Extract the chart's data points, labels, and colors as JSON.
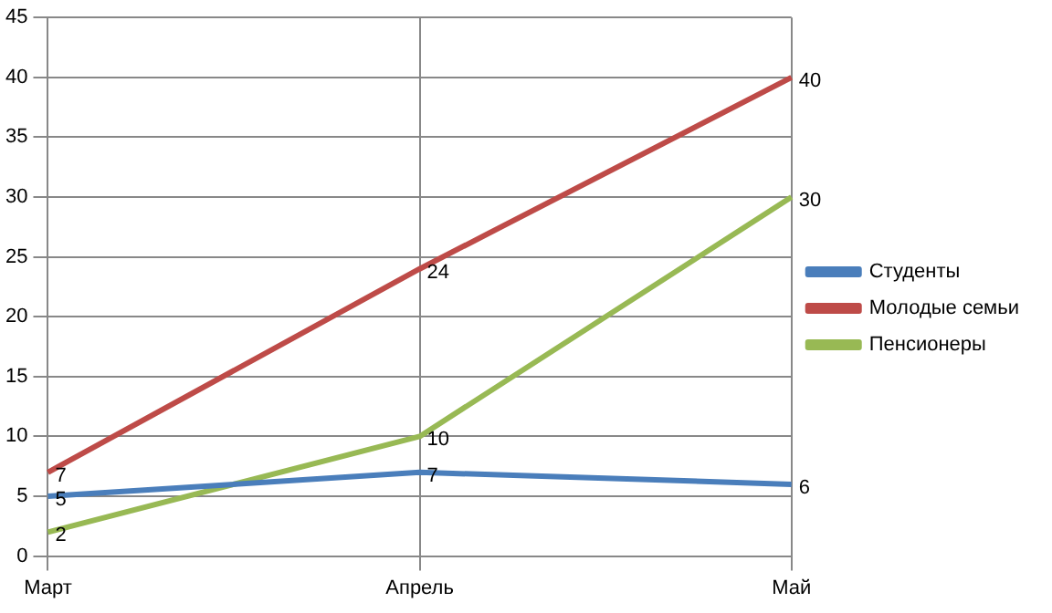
{
  "chart_data": {
    "type": "line",
    "categories": [
      "Март",
      "Апрель",
      "Май"
    ],
    "series": [
      {
        "name": "Студенты",
        "color": "#4a7ebb",
        "values": [
          5,
          7,
          6
        ]
      },
      {
        "name": "Молодые семьи",
        "color": "#be4b48",
        "values": [
          7,
          24,
          40
        ]
      },
      {
        "name": "Пенсионеры",
        "color": "#98b954",
        "values": [
          2,
          10,
          30
        ]
      }
    ],
    "ylim": [
      0,
      45
    ],
    "yticks": [
      0,
      5,
      10,
      15,
      20,
      25,
      30,
      35,
      40,
      45
    ],
    "grid": true,
    "legend": "right",
    "data_labels": true,
    "marker": "none",
    "line_style": "solid"
  }
}
